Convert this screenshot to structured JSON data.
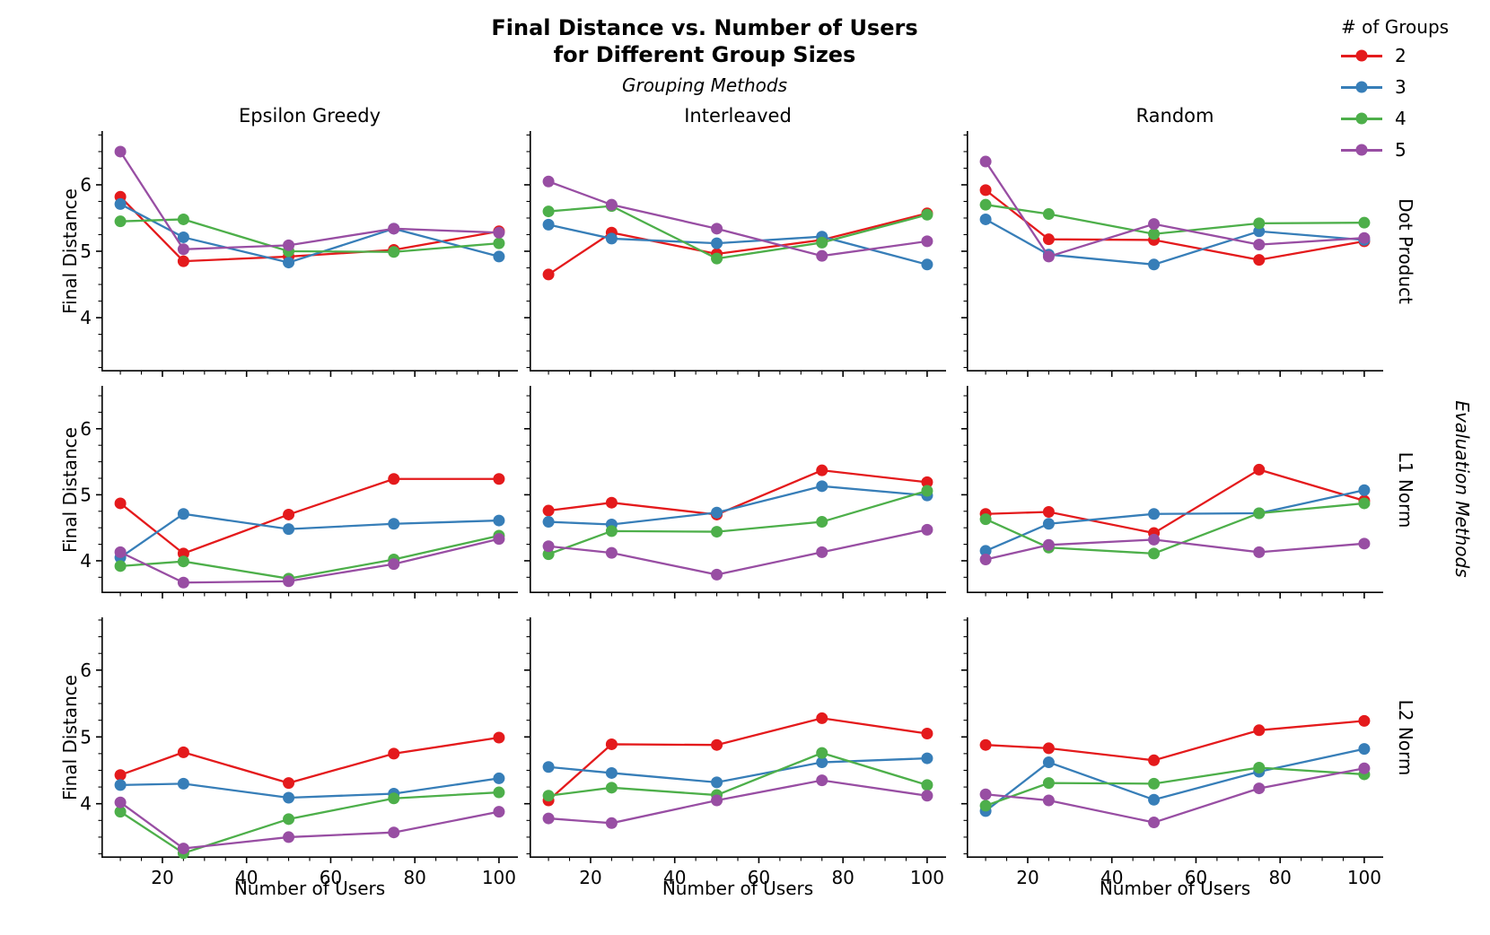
{
  "title": {
    "line1": "Final Distance vs. Number of Users",
    "line2": "for Different Group Sizes",
    "subtitle": "Grouping Methods"
  },
  "legend": {
    "title": "# of Groups",
    "entries": [
      {
        "label": "2",
        "color": "#e41a1c"
      },
      {
        "label": "3",
        "color": "#377eb8"
      },
      {
        "label": "4",
        "color": "#4daf4a"
      },
      {
        "label": "5",
        "color": "#984ea3"
      }
    ]
  },
  "axes": {
    "column_titles": [
      "Epsilon Greedy",
      "Interleaved",
      "Random"
    ],
    "row_titles": [
      "Dot Product",
      "L1 Norm",
      "L2 Norm"
    ],
    "row_group_title": "Evaluation Methods",
    "xlabel": "Number of Users",
    "ylabel": "Final Distance",
    "xticks": [
      20,
      40,
      60,
      80,
      100
    ],
    "yticks": [
      4,
      5,
      6
    ]
  },
  "chart_data": [
    {
      "type": "line",
      "row": "Dot Product",
      "col": "Epsilon Greedy",
      "x": [
        10,
        25,
        50,
        75,
        100
      ],
      "xlim": [
        5.5,
        104.5
      ],
      "ylim": [
        3.19,
        6.81
      ],
      "series": [
        {
          "name": "2",
          "color": "#e41a1c",
          "values": [
            5.82,
            4.85,
            4.92,
            5.02,
            5.3
          ]
        },
        {
          "name": "3",
          "color": "#377eb8",
          "values": [
            5.71,
            5.21,
            4.83,
            5.34,
            4.92
          ]
        },
        {
          "name": "4",
          "color": "#4daf4a",
          "values": [
            5.45,
            5.48,
            5.0,
            4.99,
            5.12
          ]
        },
        {
          "name": "5",
          "color": "#984ea3",
          "values": [
            6.5,
            5.03,
            5.09,
            5.34,
            5.28
          ]
        }
      ]
    },
    {
      "type": "line",
      "row": "Dot Product",
      "col": "Interleaved",
      "x": [
        10,
        25,
        50,
        75,
        100
      ],
      "xlim": [
        5.5,
        104.5
      ],
      "ylim": [
        3.19,
        6.81
      ],
      "series": [
        {
          "name": "2",
          "color": "#e41a1c",
          "values": [
            4.65,
            5.28,
            4.96,
            5.17,
            5.57
          ]
        },
        {
          "name": "3",
          "color": "#377eb8",
          "values": [
            5.4,
            5.19,
            5.12,
            5.22,
            4.8
          ]
        },
        {
          "name": "4",
          "color": "#4daf4a",
          "values": [
            5.6,
            5.68,
            4.89,
            5.13,
            5.55
          ]
        },
        {
          "name": "5",
          "color": "#984ea3",
          "values": [
            6.05,
            5.7,
            5.34,
            4.93,
            5.15
          ]
        }
      ]
    },
    {
      "type": "line",
      "row": "Dot Product",
      "col": "Random",
      "x": [
        10,
        25,
        50,
        75,
        100
      ],
      "xlim": [
        5.5,
        104.5
      ],
      "ylim": [
        3.19,
        6.81
      ],
      "series": [
        {
          "name": "2",
          "color": "#e41a1c",
          "values": [
            5.92,
            5.18,
            5.17,
            4.87,
            5.15
          ]
        },
        {
          "name": "3",
          "color": "#377eb8",
          "values": [
            5.48,
            4.95,
            4.8,
            5.3,
            5.17
          ]
        },
        {
          "name": "4",
          "color": "#4daf4a",
          "values": [
            5.7,
            5.56,
            5.26,
            5.42,
            5.43
          ]
        },
        {
          "name": "5",
          "color": "#984ea3",
          "values": [
            6.35,
            4.92,
            5.41,
            5.1,
            5.2
          ]
        }
      ]
    },
    {
      "type": "line",
      "row": "L1 Norm",
      "col": "Epsilon Greedy",
      "x": [
        10,
        25,
        50,
        75,
        100
      ],
      "xlim": [
        5.5,
        104.5
      ],
      "ylim": [
        3.51,
        6.65
      ],
      "series": [
        {
          "name": "2",
          "color": "#e41a1c",
          "values": [
            4.87,
            4.11,
            4.7,
            5.24,
            5.24
          ]
        },
        {
          "name": "3",
          "color": "#377eb8",
          "values": [
            4.05,
            4.71,
            4.48,
            4.56,
            4.61
          ]
        },
        {
          "name": "4",
          "color": "#4daf4a",
          "values": [
            3.92,
            3.99,
            3.73,
            4.02,
            4.38
          ]
        },
        {
          "name": "5",
          "color": "#984ea3",
          "values": [
            4.13,
            3.67,
            3.69,
            3.95,
            4.33
          ]
        }
      ]
    },
    {
      "type": "line",
      "row": "L1 Norm",
      "col": "Interleaved",
      "x": [
        10,
        25,
        50,
        75,
        100
      ],
      "xlim": [
        5.5,
        104.5
      ],
      "ylim": [
        3.51,
        6.65
      ],
      "series": [
        {
          "name": "2",
          "color": "#e41a1c",
          "values": [
            4.76,
            4.88,
            4.7,
            5.37,
            5.19
          ]
        },
        {
          "name": "3",
          "color": "#377eb8",
          "values": [
            4.59,
            4.55,
            4.73,
            5.13,
            4.99
          ]
        },
        {
          "name": "4",
          "color": "#4daf4a",
          "values": [
            4.1,
            4.45,
            4.44,
            4.59,
            5.06
          ]
        },
        {
          "name": "5",
          "color": "#984ea3",
          "values": [
            4.22,
            4.12,
            3.79,
            4.13,
            4.47
          ]
        }
      ]
    },
    {
      "type": "line",
      "row": "L1 Norm",
      "col": "Random",
      "x": [
        10,
        25,
        50,
        75,
        100
      ],
      "xlim": [
        5.5,
        104.5
      ],
      "ylim": [
        3.51,
        6.65
      ],
      "series": [
        {
          "name": "2",
          "color": "#e41a1c",
          "values": [
            4.71,
            4.74,
            4.42,
            5.38,
            4.91
          ]
        },
        {
          "name": "3",
          "color": "#377eb8",
          "values": [
            4.15,
            4.56,
            4.71,
            4.72,
            5.07
          ]
        },
        {
          "name": "4",
          "color": "#4daf4a",
          "values": [
            4.63,
            4.2,
            4.11,
            4.72,
            4.87
          ]
        },
        {
          "name": "5",
          "color": "#984ea3",
          "values": [
            4.02,
            4.24,
            4.32,
            4.13,
            4.26
          ]
        }
      ]
    },
    {
      "type": "line",
      "row": "L2 Norm",
      "col": "Epsilon Greedy",
      "x": [
        10,
        25,
        50,
        75,
        100
      ],
      "xlim": [
        5.5,
        104.5
      ],
      "ylim": [
        3.19,
        6.79
      ],
      "series": [
        {
          "name": "2",
          "color": "#e41a1c",
          "values": [
            4.43,
            4.77,
            4.31,
            4.75,
            4.99
          ]
        },
        {
          "name": "3",
          "color": "#377eb8",
          "values": [
            4.28,
            4.3,
            4.09,
            4.15,
            4.38
          ]
        },
        {
          "name": "4",
          "color": "#4daf4a",
          "values": [
            3.88,
            3.26,
            3.77,
            4.08,
            4.17
          ]
        },
        {
          "name": "5",
          "color": "#984ea3",
          "values": [
            4.02,
            3.33,
            3.5,
            3.57,
            3.88
          ]
        }
      ]
    },
    {
      "type": "line",
      "row": "L2 Norm",
      "col": "Interleaved",
      "x": [
        10,
        25,
        50,
        75,
        100
      ],
      "xlim": [
        5.5,
        104.5
      ],
      "ylim": [
        3.19,
        6.79
      ],
      "series": [
        {
          "name": "2",
          "color": "#e41a1c",
          "values": [
            4.05,
            4.89,
            4.88,
            5.28,
            5.05
          ]
        },
        {
          "name": "3",
          "color": "#377eb8",
          "values": [
            4.55,
            4.46,
            4.32,
            4.62,
            4.68
          ]
        },
        {
          "name": "4",
          "color": "#4daf4a",
          "values": [
            4.12,
            4.24,
            4.13,
            4.76,
            4.28
          ]
        },
        {
          "name": "5",
          "color": "#984ea3",
          "values": [
            3.78,
            3.71,
            4.05,
            4.35,
            4.12
          ]
        }
      ]
    },
    {
      "type": "line",
      "row": "L2 Norm",
      "col": "Random",
      "x": [
        10,
        25,
        50,
        75,
        100
      ],
      "xlim": [
        5.5,
        104.5
      ],
      "ylim": [
        3.19,
        6.79
      ],
      "series": [
        {
          "name": "2",
          "color": "#e41a1c",
          "values": [
            4.88,
            4.83,
            4.65,
            5.1,
            5.24
          ]
        },
        {
          "name": "3",
          "color": "#377eb8",
          "values": [
            3.89,
            4.62,
            4.06,
            4.48,
            4.82
          ]
        },
        {
          "name": "4",
          "color": "#4daf4a",
          "values": [
            3.97,
            4.31,
            4.3,
            4.54,
            4.44
          ]
        },
        {
          "name": "5",
          "color": "#984ea3",
          "values": [
            4.14,
            4.05,
            3.72,
            4.23,
            4.53
          ]
        }
      ]
    }
  ]
}
